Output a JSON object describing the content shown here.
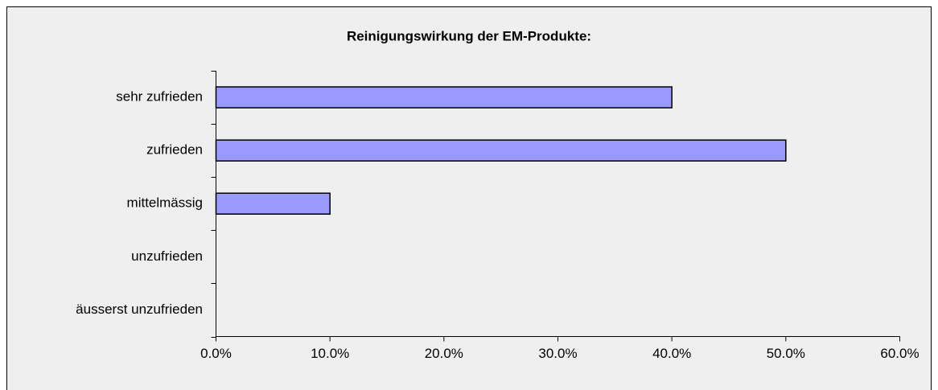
{
  "chart_data": {
    "type": "bar",
    "orientation": "horizontal",
    "title": "Reinigungswirkung der EM-Produkte:",
    "categories": [
      "sehr zufrieden",
      "zufrieden",
      "mittelmässig",
      "unzufrieden",
      "äusserst unzufrieden"
    ],
    "values": [
      40,
      50,
      10,
      0,
      0
    ],
    "color": "#9999ff",
    "xlim": [
      0,
      60
    ],
    "xticks": [
      {
        "value": 0,
        "label": "0.0%"
      },
      {
        "value": 10,
        "label": "10.0%"
      },
      {
        "value": 20,
        "label": "20.0%"
      },
      {
        "value": 30,
        "label": "30.0%"
      },
      {
        "value": 40,
        "label": "40.0%"
      },
      {
        "value": 50,
        "label": "50.0%"
      },
      {
        "value": 60,
        "label": "60.0%"
      }
    ],
    "grid": false
  }
}
